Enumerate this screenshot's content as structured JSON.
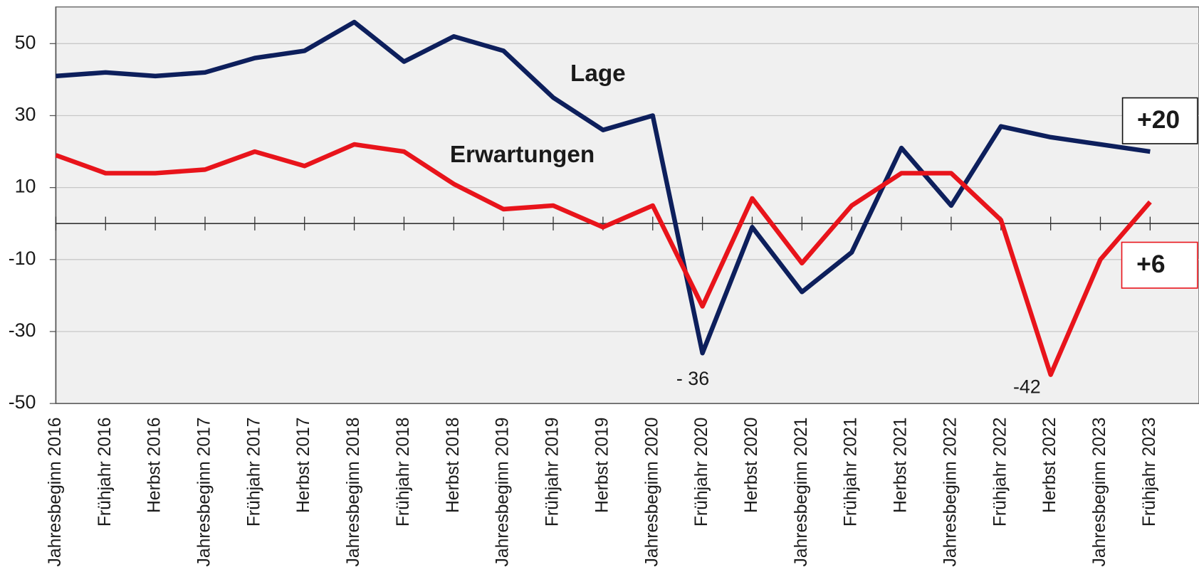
{
  "chart_data": {
    "type": "line",
    "categories": [
      "Jahresbeginn 2016",
      "Frühjahr 2016",
      "Herbst 2016",
      "Jahresbeginn 2017",
      "Frühjahr 2017",
      "Herbst 2017",
      "Jahresbeginn 2018",
      "Frühjahr 2018",
      "Herbst 2018",
      "Jahresbeginn 2019",
      "Frühjahr 2019",
      "Herbst 2019",
      "Jahresbeginn 2020",
      "Frühjahr 2020",
      "Herbst 2020",
      "Jahresbeginn 2021",
      "Frühjahr 2021",
      "Herbst 2021",
      "Jahresbeginn 2022",
      "Frühjahr 2022",
      "Herbst 2022",
      "Jahresbeginn 2023",
      "Frühjahr 2023"
    ],
    "series": [
      {
        "name": "Lage",
        "color": "#0d1f5c",
        "values": [
          41,
          42,
          41,
          42,
          46,
          48,
          56,
          45,
          52,
          48,
          35,
          26,
          30,
          -36,
          -1,
          -19,
          -8,
          21,
          5,
          27,
          24,
          22,
          20
        ]
      },
      {
        "name": "Erwartungen",
        "color": "#e8141b",
        "values": [
          19,
          14,
          14,
          15,
          20,
          16,
          22,
          20,
          11,
          4,
          5,
          -1,
          5,
          -23,
          7,
          -11,
          5,
          14,
          14,
          1,
          -42,
          -10,
          6
        ]
      }
    ],
    "annotations": [
      "- 36",
      "-42",
      "+20",
      "+6"
    ],
    "ylim": [
      -50,
      60.2
    ],
    "yticks": [
      50,
      30,
      10,
      -10,
      -30,
      -50
    ],
    "grid": true
  }
}
